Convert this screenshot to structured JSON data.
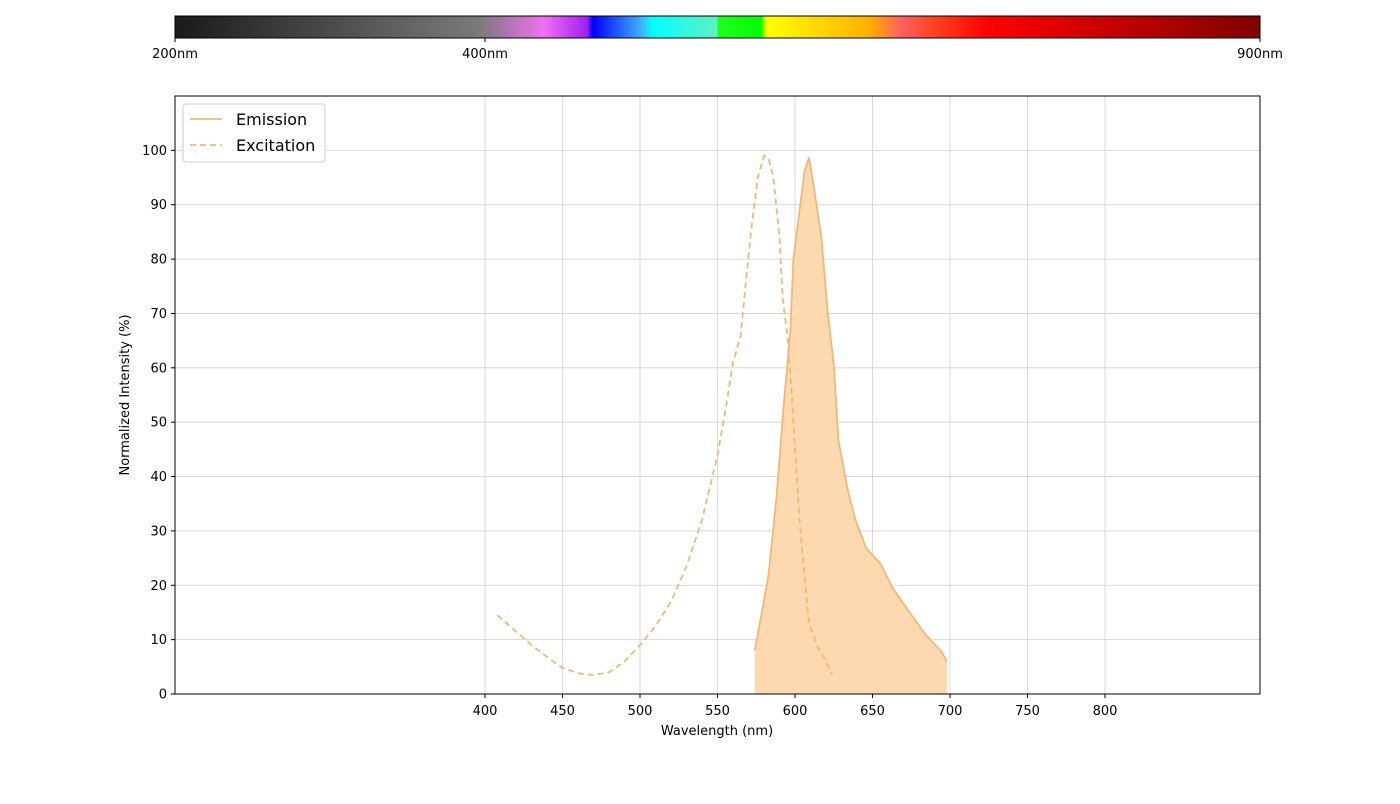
{
  "chart_data": {
    "type": "line",
    "xlabel": "Wavelength (nm)",
    "ylabel": "Normalized Intensity (%)",
    "xlim": [
      200,
      900
    ],
    "ylim": [
      0,
      110
    ],
    "xticks": [
      400,
      450,
      500,
      550,
      600,
      650,
      700,
      750,
      800
    ],
    "yticks": [
      0,
      10,
      20,
      30,
      40,
      50,
      60,
      70,
      80,
      90,
      100
    ],
    "grid": true,
    "legend": "upper-left",
    "colorbar": {
      "xlim": [
        200,
        900
      ],
      "ticks": [
        {
          "value": 200,
          "label": "200nm"
        },
        {
          "value": 400,
          "label": "400nm"
        },
        {
          "value": 900,
          "label": "900nm"
        }
      ]
    },
    "series": [
      {
        "name": "Emission",
        "color": "#f0b87a",
        "fill": "#fdd9b0",
        "dash": false,
        "x": [
          574,
          578,
          583,
          588,
          593,
          597,
          599,
          603,
          606,
          609,
          612,
          617,
          621,
          625,
          628,
          634,
          639,
          646,
          655,
          663,
          674,
          684,
          694,
          698
        ],
        "values": [
          8,
          14,
          22,
          36,
          54,
          67,
          80,
          89,
          96,
          98.7,
          93.5,
          84,
          70.6,
          60.5,
          46.7,
          37.5,
          32,
          26.8,
          24,
          19.5,
          15,
          11,
          8,
          6
        ]
      },
      {
        "name": "Excitation",
        "color": "#f0b87a",
        "dash": true,
        "x": [
          408,
          420,
          430,
          440,
          450,
          460,
          470,
          480,
          490,
          500,
          510,
          520,
          530,
          540,
          545,
          550,
          555,
          560,
          565,
          568,
          572,
          576,
          580,
          583,
          586,
          590,
          592,
          595,
          598,
          600,
          603,
          606,
          609,
          614,
          620,
          624
        ],
        "values": [
          14.5,
          11.5,
          9,
          6.8,
          4.8,
          3.8,
          3.5,
          4,
          6,
          9,
          12.5,
          17,
          23.5,
          32,
          38,
          44,
          52,
          61,
          66,
          75,
          86,
          95,
          99,
          98.5,
          95,
          84,
          73,
          66,
          55,
          45,
          32,
          22,
          13,
          9,
          6,
          3.5
        ]
      }
    ]
  }
}
